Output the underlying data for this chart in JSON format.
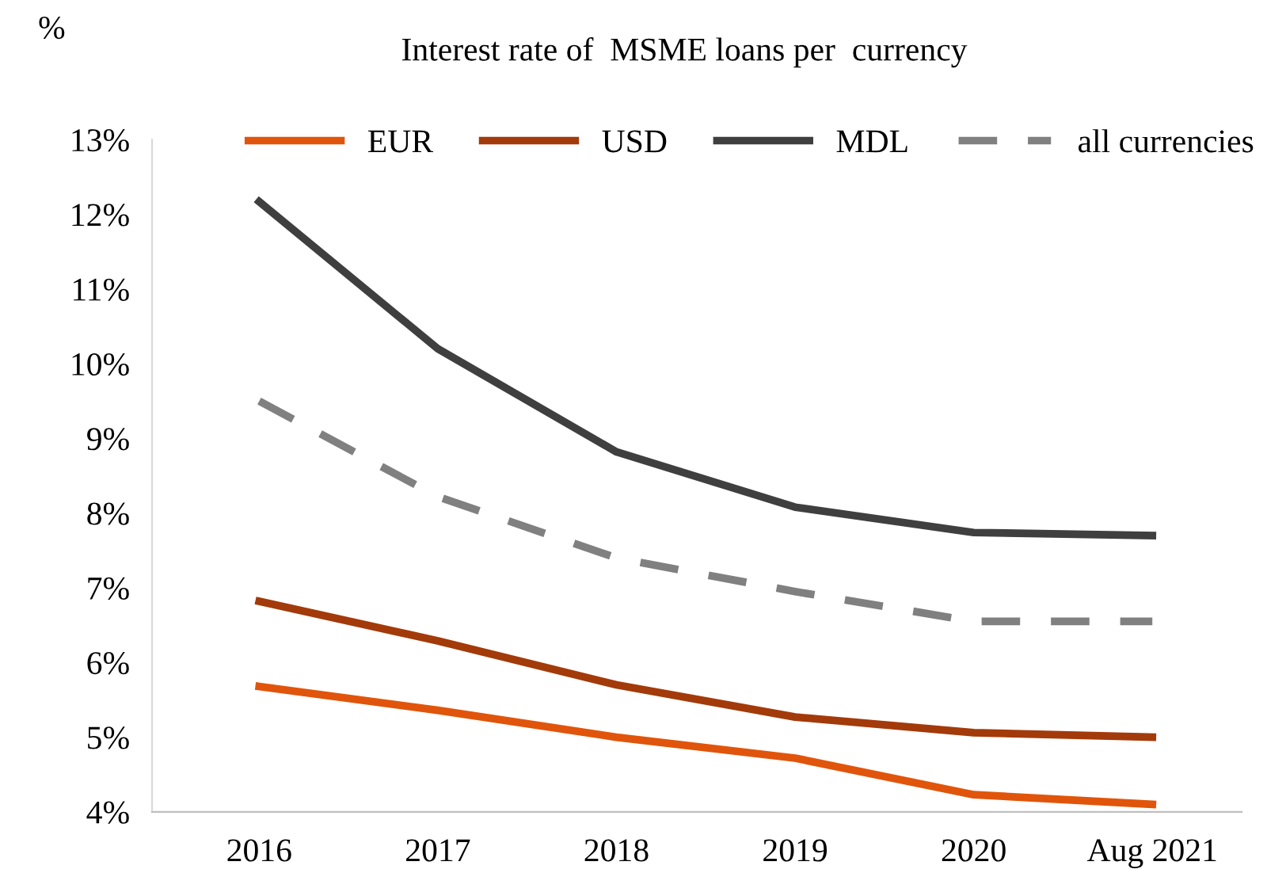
{
  "chart_data": {
    "type": "line",
    "title": "Interest rate of  MSME loans per  currency",
    "ylabel": "%",
    "categories": [
      "2016",
      "2017",
      "2018",
      "2019",
      "2020",
      "Aug 2021"
    ],
    "series": [
      {
        "name": "EUR",
        "color": "#e0550b",
        "values": [
          5.68,
          5.36,
          5.0,
          4.72,
          4.23,
          4.1
        ]
      },
      {
        "name": "USD",
        "color": "#a33a0a",
        "values": [
          6.82,
          6.29,
          5.7,
          5.27,
          5.06,
          5.0
        ]
      },
      {
        "name": "MDL",
        "color": "#3f3f3f",
        "values": [
          12.17,
          10.2,
          8.82,
          8.08,
          7.74,
          7.7
        ]
      },
      {
        "name": "all currencies",
        "color": "#808080",
        "values": [
          9.5,
          8.22,
          7.4,
          6.95,
          6.55,
          6.55
        ],
        "line_style": "dashed"
      }
    ],
    "ylim": [
      4,
      13
    ],
    "yticks": [
      {
        "value": 4,
        "label": "4%"
      },
      {
        "value": 5,
        "label": "5%"
      },
      {
        "value": 6,
        "label": "6%"
      },
      {
        "value": 7,
        "label": "7%"
      },
      {
        "value": 8,
        "label": "8%"
      },
      {
        "value": 9,
        "label": "9%"
      },
      {
        "value": 10,
        "label": "10%"
      },
      {
        "value": 11,
        "label": "11%"
      },
      {
        "value": 12,
        "label": "12%"
      },
      {
        "value": 13,
        "label": "13%"
      }
    ],
    "grid": false,
    "legend": "top",
    "marker": "none",
    "line_style": "solid"
  }
}
